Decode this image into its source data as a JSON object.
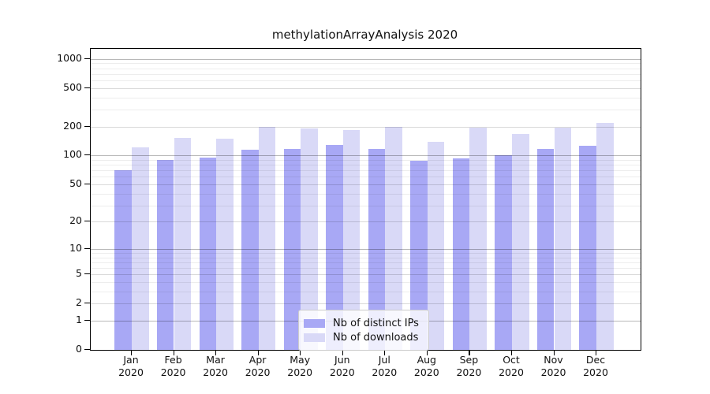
{
  "title": "methylationArrayAnalysis 2020",
  "legend": {
    "items": [
      {
        "label": "Nb of distinct IPs",
        "color": "#a8a8f5"
      },
      {
        "label": "Nb of downloads",
        "color": "#d9d9f7"
      }
    ]
  },
  "chart_data": {
    "type": "bar",
    "title": "methylationArrayAnalysis 2020",
    "categories": [
      "Jan 2020",
      "Feb 2020",
      "Mar 2020",
      "Apr 2020",
      "May 2020",
      "Jun 2020",
      "Jul 2020",
      "Aug 2020",
      "Sep 2020",
      "Oct 2020",
      "Nov 2020",
      "Dec 2020"
    ],
    "series": [
      {
        "name": "Nb of distinct IPs",
        "color": "#a8a8f5",
        "values": [
          70,
          90,
          95,
          116,
          118,
          128,
          118,
          89,
          94,
          100,
          118,
          127
        ]
      },
      {
        "name": "Nb of downloads",
        "color": "#d9d9f7",
        "values": [
          121,
          152,
          149,
          200,
          190,
          184,
          198,
          138,
          194,
          169,
          196,
          220
        ]
      }
    ],
    "xlabel": "",
    "ylabel": "",
    "yscale": "log1p",
    "ylim": [
      0,
      1270
    ],
    "yticks": [
      0,
      1,
      2,
      5,
      10,
      20,
      50,
      100,
      200,
      500,
      1000
    ],
    "grid": true,
    "legend_position": "lower center"
  }
}
